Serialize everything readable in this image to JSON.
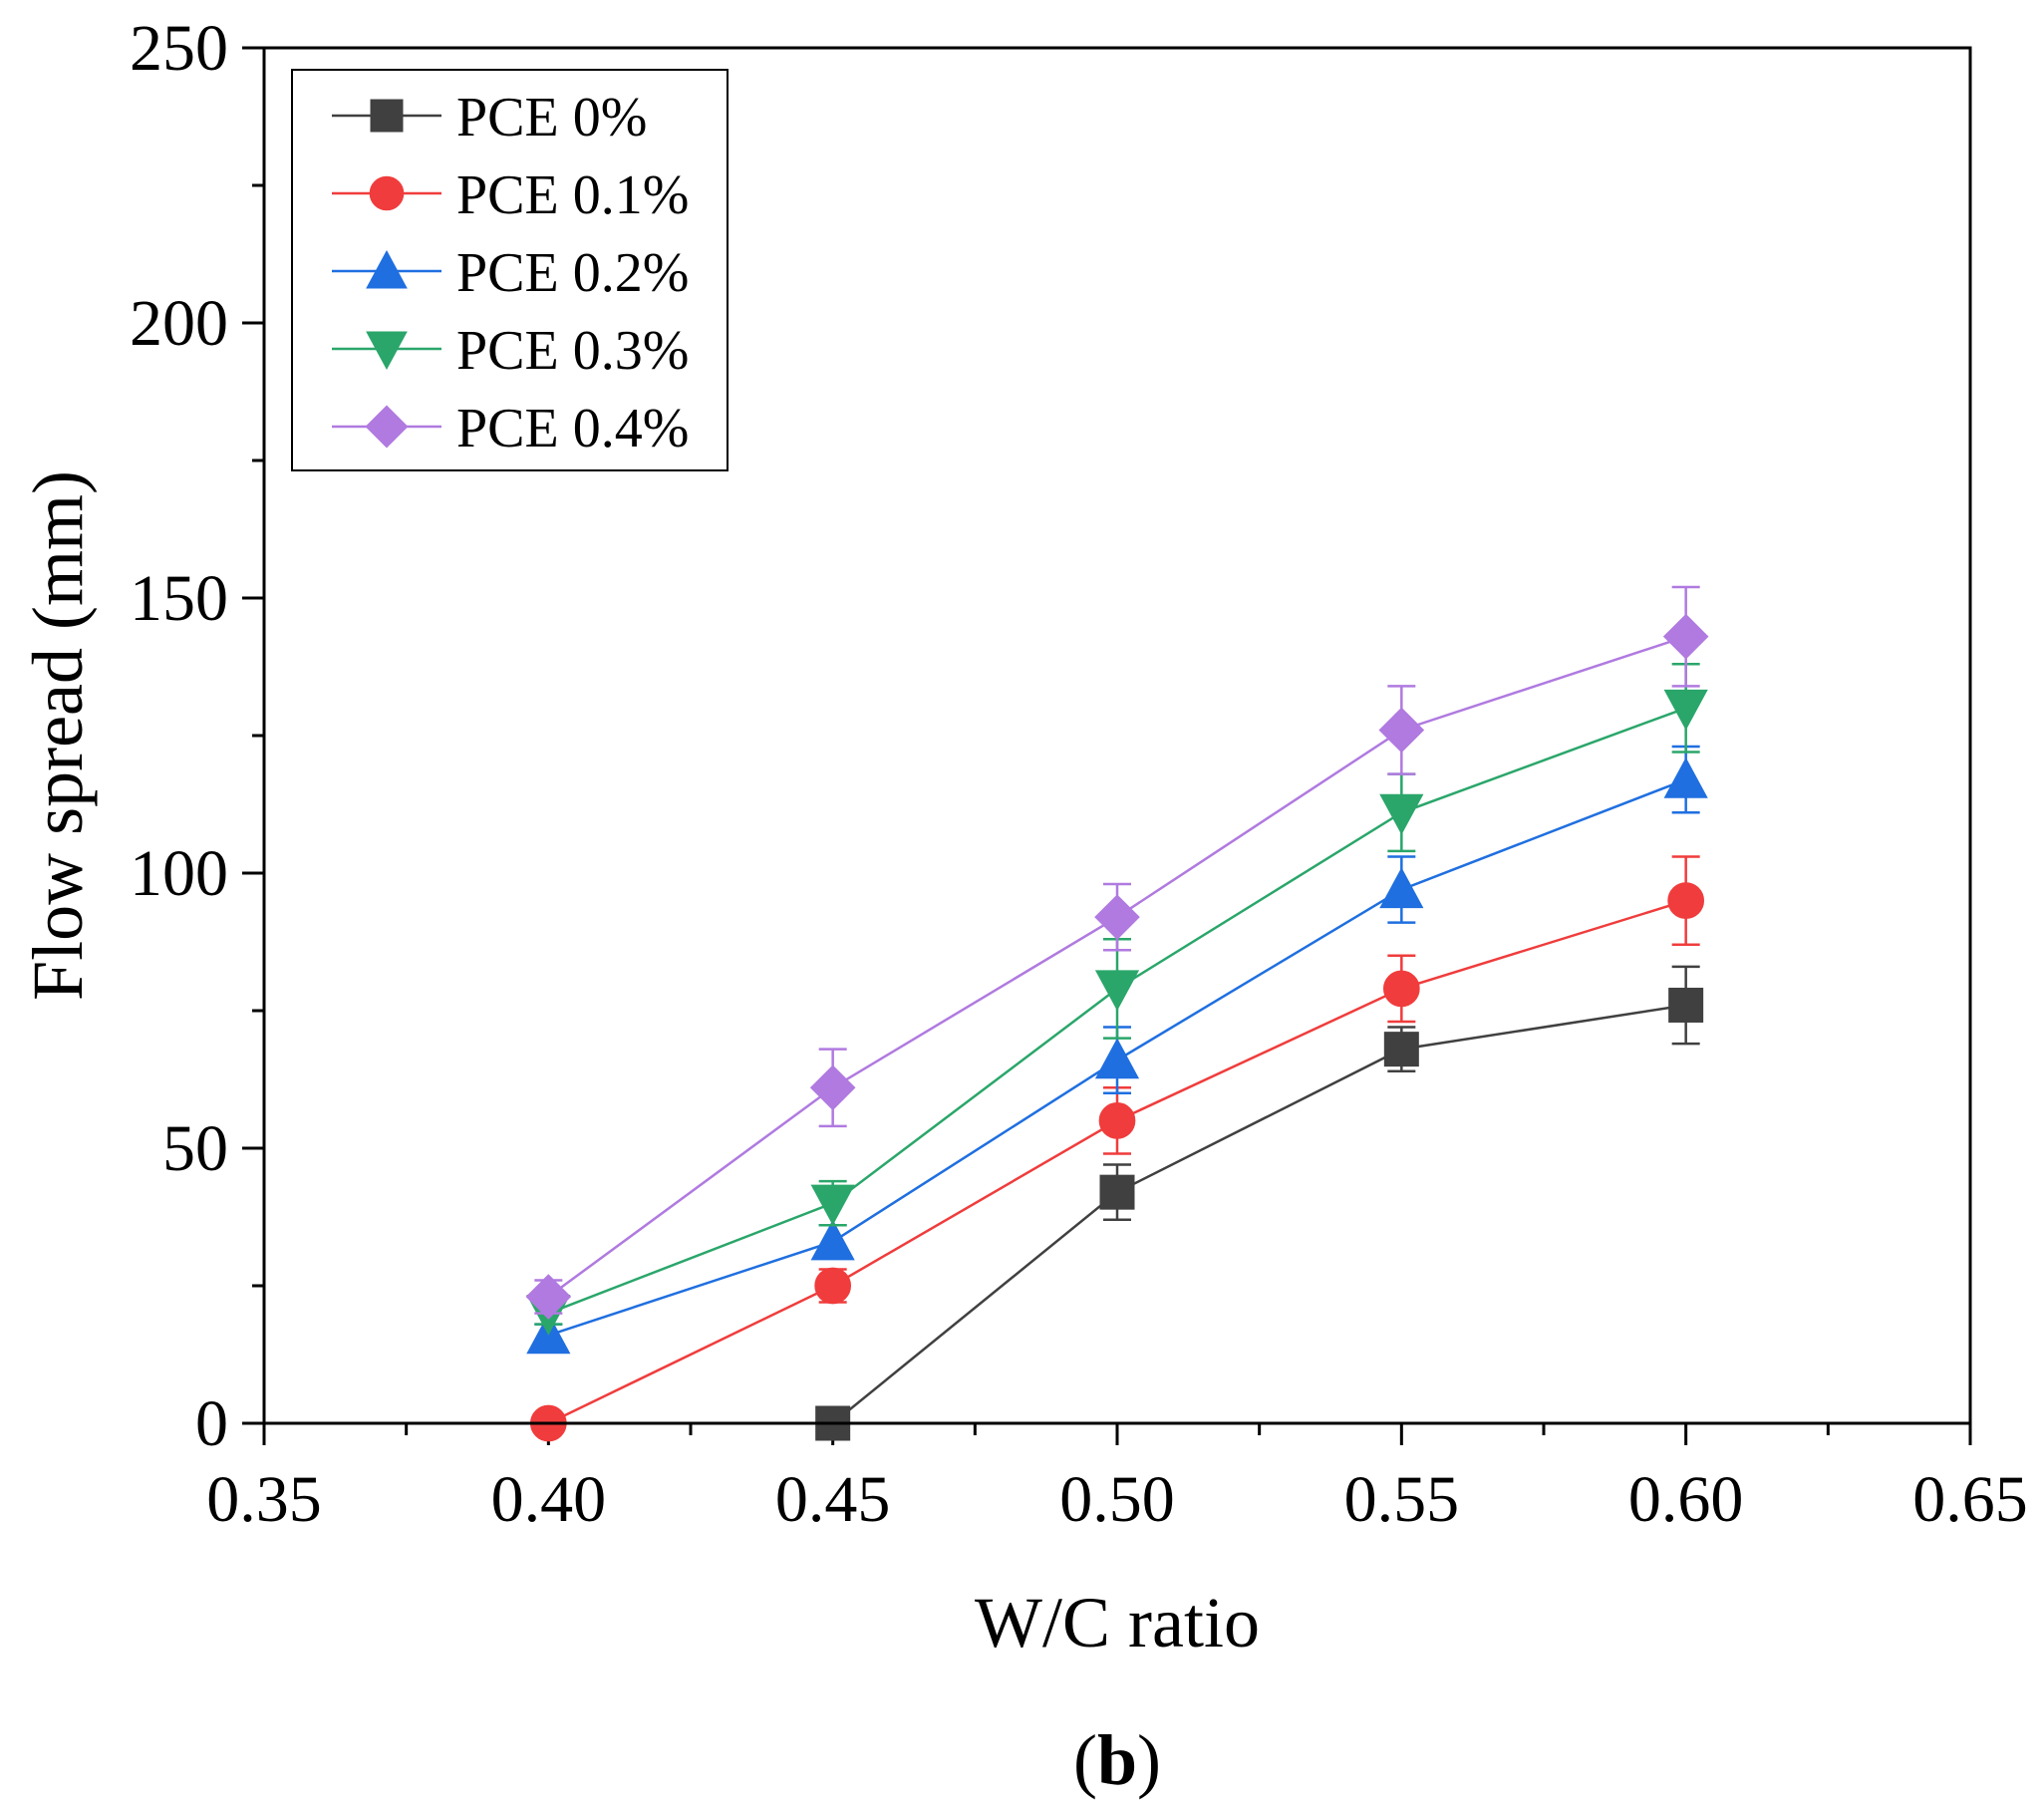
{
  "chart_data": {
    "type": "line",
    "xlabel": "W/C ratio",
    "ylabel": "Flow spread (mm)",
    "xlim": [
      0.35,
      0.65
    ],
    "ylim": [
      0,
      250
    ],
    "x_ticks": [
      "0.35",
      "0.40",
      "0.45",
      "0.50",
      "0.55",
      "0.60",
      "0.65"
    ],
    "y_ticks": [
      "0",
      "50",
      "100",
      "150",
      "200",
      "250"
    ],
    "legend_position": "top-left",
    "series": [
      {
        "name": "PCE 0%",
        "color": "#404040",
        "marker": "square",
        "x": [
          0.45,
          0.5,
          0.55,
          0.6
        ],
        "values": [
          0,
          42,
          68,
          76
        ],
        "errors": [
          0,
          5,
          4,
          7
        ]
      },
      {
        "name": "PCE 0.1%",
        "color": "#f03c3c",
        "marker": "circle",
        "x": [
          0.4,
          0.45,
          0.5,
          0.55,
          0.6
        ],
        "values": [
          0,
          25,
          55,
          79,
          95
        ],
        "errors": [
          0,
          3,
          6,
          6,
          8
        ]
      },
      {
        "name": "PCE 0.2%",
        "color": "#1f6fe0",
        "marker": "triangle-up",
        "x": [
          0.4,
          0.45,
          0.5,
          0.55,
          0.6
        ],
        "values": [
          16,
          33,
          66,
          97,
          117
        ],
        "errors": [
          2,
          3,
          6,
          6,
          6
        ]
      },
      {
        "name": "PCE 0.3%",
        "color": "#2aa66a",
        "marker": "triangle-down",
        "x": [
          0.4,
          0.45,
          0.5,
          0.55,
          0.6
        ],
        "values": [
          20,
          40,
          79,
          111,
          130
        ],
        "errors": [
          2,
          4,
          9,
          7,
          8
        ]
      },
      {
        "name": "PCE 0.4%",
        "color": "#b07ae0",
        "marker": "diamond",
        "x": [
          0.4,
          0.45,
          0.5,
          0.55,
          0.6
        ],
        "values": [
          23,
          61,
          92,
          126,
          143
        ],
        "errors": [
          3,
          7,
          6,
          8,
          9
        ]
      }
    ]
  },
  "caption": "(b)"
}
